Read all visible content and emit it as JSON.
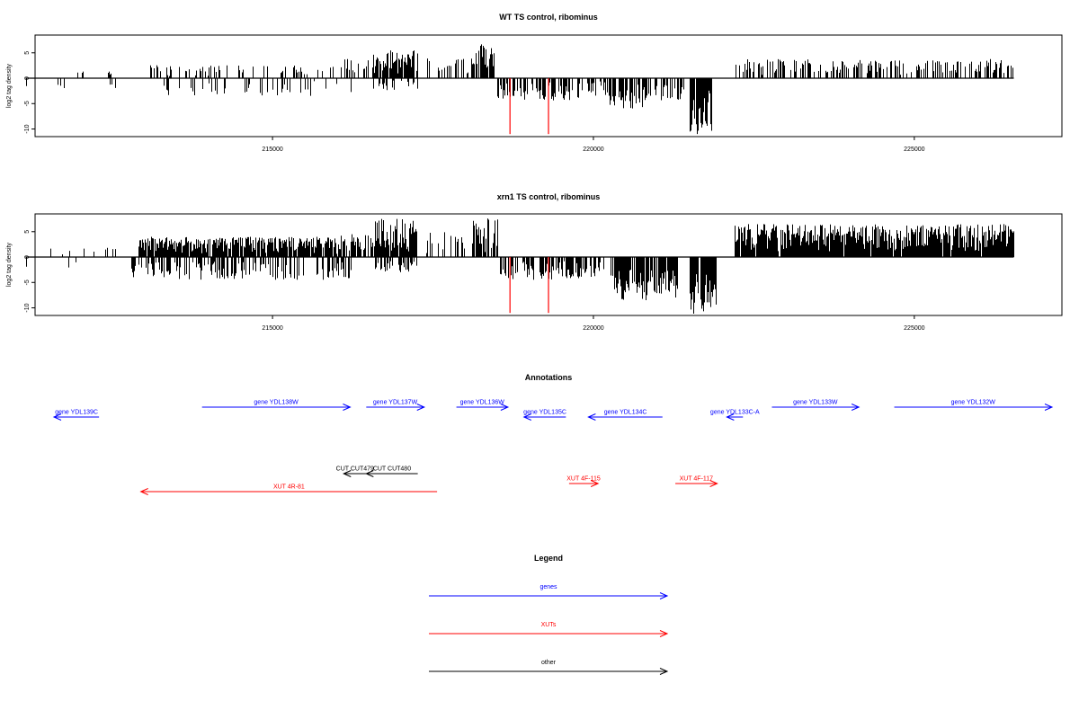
{
  "chart_data": [
    {
      "type": "bar",
      "title": "WT TS control, ribominus",
      "xlabel": "",
      "ylabel": "log2 tag density",
      "xlim": [
        211300,
        227300
      ],
      "ylim": [
        -11.5,
        8.5
      ],
      "xticks": [
        215000,
        220000,
        225000
      ],
      "xtick_labels": [
        "215000",
        "220000",
        "225000"
      ],
      "yticks": [
        5,
        0,
        -5,
        -10
      ],
      "ytick_labels": [
        "5",
        "0",
        "-5",
        "-10"
      ],
      "positive_track_range": [
        211150,
        226550
      ],
      "highlight_lines": [
        218700,
        219300
      ],
      "highlight_color": "#ff0000",
      "segments": [
        {
          "range": [
            211150,
            212900
          ],
          "side": "pos",
          "max": 1.5,
          "density": 0.06
        },
        {
          "range": [
            211150,
            212600
          ],
          "side": "neg",
          "max": 2.0,
          "density": 0.06
        },
        {
          "range": [
            212900,
            216000
          ],
          "side": "pos",
          "max": 2.6,
          "density": 0.22
        },
        {
          "range": [
            213100,
            216300
          ],
          "side": "neg",
          "max": 3.5,
          "density": 0.15
        },
        {
          "range": [
            216000,
            216550
          ],
          "side": "pos",
          "max": 3.8,
          "density": 0.3
        },
        {
          "range": [
            216550,
            217250
          ],
          "side": "pos",
          "max": 5.5,
          "density": 0.9
        },
        {
          "range": [
            216550,
            217250
          ],
          "side": "neg",
          "max": 2.5,
          "density": 0.35
        },
        {
          "range": [
            217400,
            218300
          ],
          "side": "pos",
          "max": 4.0,
          "density": 0.25
        },
        {
          "range": [
            218100,
            218450
          ],
          "side": "pos",
          "max": 6.8,
          "density": 0.7
        },
        {
          "range": [
            218500,
            219800
          ],
          "side": "neg",
          "max": 4.5,
          "density": 0.5
        },
        {
          "range": [
            219800,
            220300
          ],
          "side": "neg",
          "max": 3.5,
          "density": 0.35
        },
        {
          "range": [
            220200,
            220800
          ],
          "side": "neg",
          "max": 6.0,
          "density": 0.6
        },
        {
          "range": [
            220800,
            221400
          ],
          "side": "neg",
          "max": 4.5,
          "density": 0.6
        },
        {
          "range": [
            221500,
            221850
          ],
          "side": "neg",
          "max": 11.0,
          "density": 0.9
        },
        {
          "range": [
            222200,
            226550
          ],
          "side": "pos",
          "max": 3.8,
          "density": 0.45
        }
      ]
    },
    {
      "type": "bar",
      "title": "xrn1 TS control, ribominus",
      "xlabel": "",
      "ylabel": "log2 tag density",
      "xlim": [
        211300,
        227300
      ],
      "ylim": [
        -11.5,
        8.5
      ],
      "xticks": [
        215000,
        220000,
        225000
      ],
      "xtick_labels": [
        "215000",
        "220000",
        "225000"
      ],
      "yticks": [
        5,
        0,
        -5,
        -10
      ],
      "ytick_labels": [
        "5",
        "0",
        "-5",
        "-10"
      ],
      "positive_track_range": [
        211150,
        226550
      ],
      "highlight_lines": [
        218700,
        219300
      ],
      "highlight_color": "#ff0000",
      "segments": [
        {
          "range": [
            211150,
            212800
          ],
          "side": "pos",
          "max": 2.0,
          "density": 0.08
        },
        {
          "range": [
            211150,
            212200
          ],
          "side": "neg",
          "max": 2.5,
          "density": 0.08
        },
        {
          "range": [
            212800,
            213400
          ],
          "side": "neg",
          "max": 4.0,
          "density": 0.5
        },
        {
          "range": [
            212900,
            216000
          ],
          "side": "pos",
          "max": 4.0,
          "density": 0.9
        },
        {
          "range": [
            213400,
            216300
          ],
          "side": "neg",
          "max": 4.5,
          "density": 0.45
        },
        {
          "range": [
            216000,
            216600
          ],
          "side": "pos",
          "max": 4.5,
          "density": 0.6
        },
        {
          "range": [
            216600,
            217250
          ],
          "side": "pos",
          "max": 7.5,
          "density": 0.95
        },
        {
          "range": [
            216600,
            217250
          ],
          "side": "neg",
          "max": 3.0,
          "density": 0.5
        },
        {
          "range": [
            217400,
            218300
          ],
          "side": "pos",
          "max": 5.0,
          "density": 0.25
        },
        {
          "range": [
            218100,
            218500
          ],
          "side": "pos",
          "max": 7.8,
          "density": 0.8
        },
        {
          "range": [
            218500,
            219800
          ],
          "side": "neg",
          "max": 4.5,
          "density": 0.6
        },
        {
          "range": [
            219800,
            220300
          ],
          "side": "neg",
          "max": 4.0,
          "density": 0.5
        },
        {
          "range": [
            220300,
            221300
          ],
          "side": "neg",
          "max": 8.5,
          "density": 0.9
        },
        {
          "range": [
            221500,
            221900
          ],
          "side": "neg",
          "max": 11.5,
          "density": 0.95
        },
        {
          "range": [
            222200,
            226550
          ],
          "side": "pos",
          "max": 6.5,
          "density": 0.95
        }
      ]
    }
  ],
  "annotations": {
    "title": "Annotations",
    "features": [
      {
        "label": "gene YDL139C",
        "type": "gene",
        "strand": "-",
        "start": 211150,
        "end": 211850,
        "row": 2
      },
      {
        "label": "gene YDL138W",
        "type": "gene",
        "strand": "+",
        "start": 213450,
        "end": 215750,
        "row": 1
      },
      {
        "label": "gene YDL137W",
        "type": "gene",
        "strand": "+",
        "start": 216000,
        "end": 216900,
        "row": 1
      },
      {
        "label": "gene YDL136W",
        "type": "gene",
        "strand": "+",
        "start": 217400,
        "end": 218200,
        "row": 1
      },
      {
        "label": "gene YDL135C",
        "type": "gene",
        "strand": "-",
        "start": 218450,
        "end": 219100,
        "row": 2
      },
      {
        "label": "gene YDL134C",
        "type": "gene",
        "strand": "-",
        "start": 219450,
        "end": 220600,
        "row": 2
      },
      {
        "label": "gene YDL133C-A",
        "type": "gene",
        "strand": "-",
        "start": 221600,
        "end": 221850,
        "row": 2
      },
      {
        "label": "gene YDL133W",
        "type": "gene",
        "strand": "+",
        "start": 222300,
        "end": 223650,
        "row": 1
      },
      {
        "label": "gene YDL132W",
        "type": "gene",
        "strand": "+",
        "start": 224200,
        "end": 226650,
        "row": 1
      },
      {
        "label": "CUT CUT479",
        "type": "other",
        "strand": "-",
        "start": 215650,
        "end": 216000,
        "row": 3
      },
      {
        "label": "CUT CUT480",
        "type": "other",
        "strand": "-",
        "start": 216000,
        "end": 216800,
        "row": 3
      },
      {
        "label": "XUT 4F-115",
        "type": "xut",
        "strand": "+",
        "start": 219150,
        "end": 219600,
        "row": 4
      },
      {
        "label": "XUT 4F-117",
        "type": "xut",
        "strand": "+",
        "start": 220800,
        "end": 221450,
        "row": 4
      },
      {
        "label": "XUT 4R-81",
        "type": "xut",
        "strand": "-",
        "start": 212500,
        "end": 217100,
        "row": 5
      }
    ]
  },
  "legend": {
    "title": "Legend",
    "items": [
      {
        "label": "genes",
        "type": "gene"
      },
      {
        "label": "XUTs",
        "type": "xut"
      },
      {
        "label": "other",
        "type": "other"
      }
    ]
  },
  "colors": {
    "gene": "#0000ff",
    "xut": "#ff0000",
    "other": "#000000",
    "bars": "#000000"
  }
}
